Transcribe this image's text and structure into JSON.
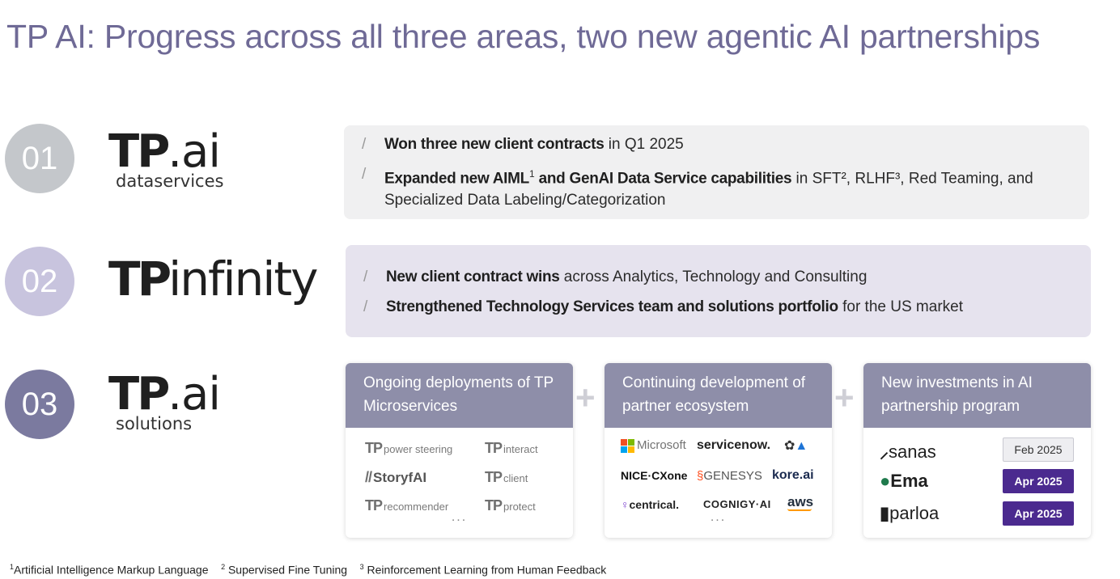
{
  "title": "TP AI: Progress across all three areas, two new agentic AI partnerships",
  "sections": [
    {
      "number": "01",
      "logo_main": "TP",
      "logo_suffix": ".ai",
      "logo_sub": "dataservices",
      "bullets": [
        {
          "bold": "Won three new client contracts",
          "rest": " in Q1 2025"
        },
        {
          "bold": "Expanded new AIML",
          "sup1": "1",
          "bold2": " and GenAI Data Service capabilities",
          "rest": " in SFT², RLHF³, Red Teaming, and Specialized Data Labeling/Categorization"
        }
      ]
    },
    {
      "number": "02",
      "logo_main": "TP",
      "logo_suffix": "infinity",
      "bullets": [
        {
          "bold": "New client contract wins",
          "rest": " across Analytics, Technology and Consulting"
        },
        {
          "bold": "Strengthened Technology Services team and solutions portfolio",
          "rest": " for the US market"
        }
      ]
    },
    {
      "number": "03",
      "logo_main": "TP",
      "logo_suffix": ".ai",
      "logo_sub": "solutions"
    }
  ],
  "bullet_marker": "/",
  "plus_sign": "+",
  "cards": {
    "microservices": {
      "header": "Ongoing deployments of TP Microservices",
      "items": [
        {
          "prefix": "TP",
          "label": "power steering"
        },
        {
          "prefix": "TP",
          "label": "interact"
        },
        {
          "prefix": "//",
          "label": "StoryfAI"
        },
        {
          "prefix": "TP",
          "label": "client"
        },
        {
          "prefix": "TP",
          "label": "recommender"
        },
        {
          "prefix": "TP",
          "label": "protect"
        }
      ],
      "more": "..."
    },
    "ecosystem": {
      "header": "Continuing development of partner ecosystem",
      "partners": [
        "Microsoft",
        "servicenow.",
        "NICE·CXone",
        "GENESYS",
        "kore.ai",
        "centrical.",
        "COGNIGY·AI",
        "aws"
      ],
      "more": "..."
    },
    "investments": {
      "header": "New investments in AI partnership program",
      "items": [
        {
          "name": "sanas",
          "date": "Feb 2025"
        },
        {
          "name": "Ema",
          "date": "Apr 2025"
        },
        {
          "name": "parloa",
          "date": "Apr 2025"
        }
      ]
    }
  },
  "footnotes": {
    "n1": "1",
    "t1": "Artificial Intelligence Markup Language",
    "n2": "2",
    "t2": "Supervised Fine Tuning",
    "n3": "3",
    "t3": "Reinforcement Learning from Human Feedback"
  },
  "colors": {
    "title": "#6f6a96",
    "circle1": "#c4c7cb",
    "circle2": "#c8c4de",
    "circle3": "#7b7a9f",
    "card_header": "#8e8ea9",
    "date_badge_dark": "#4b2a8f"
  }
}
